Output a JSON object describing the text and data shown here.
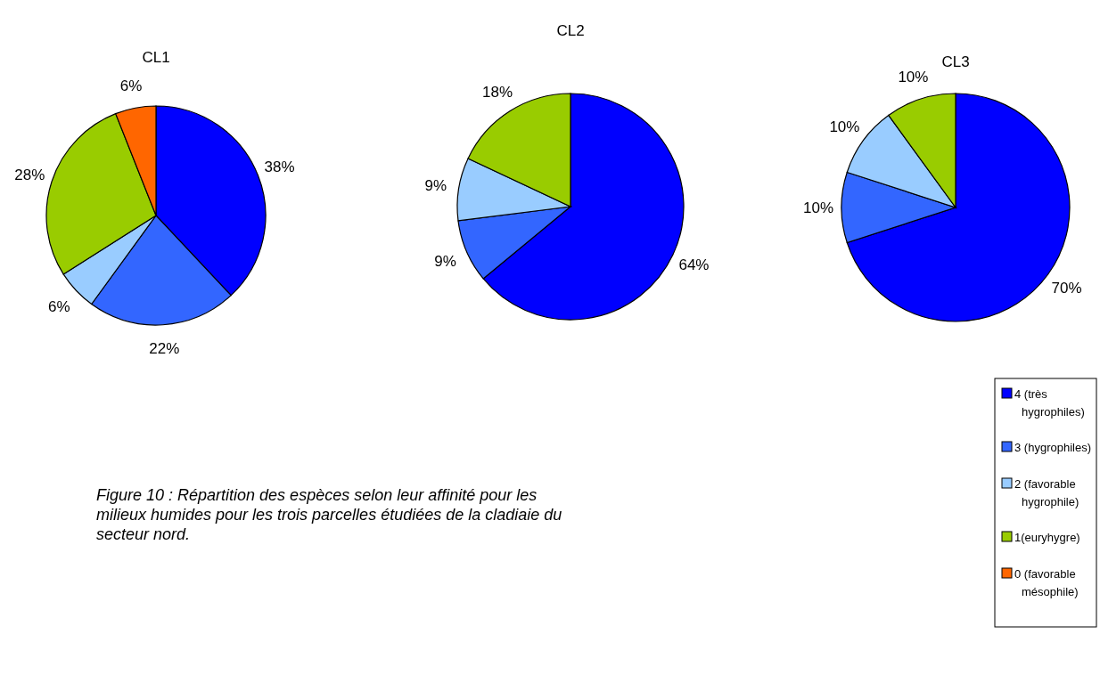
{
  "chart_data": [
    {
      "type": "pie",
      "title": "CL1",
      "categories": [
        "4 (très hygrophiles)",
        "3 (hygrophiles)",
        "2 (favorable hygrophile)",
        "1(euryhygre)",
        "0 (favorable mésophile)"
      ],
      "values": [
        38,
        22,
        6,
        28,
        6
      ],
      "value_labels": [
        "38%",
        "22%",
        "6%",
        "28%",
        "6%"
      ],
      "colors": [
        "#0000ff",
        "#3366ff",
        "#99ccff",
        "#99cc00",
        "#ff6600"
      ],
      "legend": "bottom right",
      "annotations": [
        "Figure 10 : Répartition des espèces selon leur affinité pour les milieux humides pour les trois parcelles étudiées de la cladiaie du secteur nord."
      ]
    },
    {
      "type": "pie",
      "title": "CL2",
      "categories": [
        null,
        null,
        null,
        null
      ],
      "values": [
        64,
        9,
        9,
        18
      ],
      "value_labels": [
        "64%",
        "9%",
        "9%",
        "18%"
      ],
      "colors": [
        "#0000ff",
        "#3366ff",
        "#99ccff",
        "#99cc00"
      ]
    },
    {
      "type": "pie",
      "title": "CL3",
      "categories": [
        null,
        null,
        null,
        null
      ],
      "values": [
        70,
        10,
        10,
        10
      ],
      "value_labels": [
        "70%",
        "10%",
        "10%",
        "10%"
      ],
      "colors": [
        "#0000ff",
        "#3366ff",
        "#99ccff",
        "#99cc00"
      ]
    }
  ]
}
